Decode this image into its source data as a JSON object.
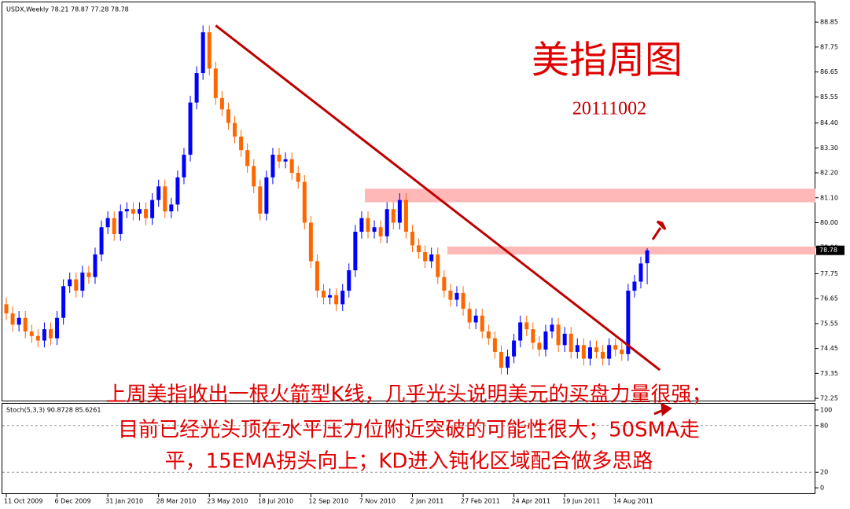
{
  "header": "USDX,Weekly  78.21 78.87 77.28 78.78",
  "chart_data": {
    "type": "candlestick",
    "title": "美指周图",
    "subtitle": "20111002",
    "annotation": [
      "上周美指收出一根火箭型K线，几乎光头说明美元的买盘力量很强；",
      "目前已经光头顶在水平压力位附近突破的可能性很大；50SMA走",
      "平，15EMA拐头向上；KD进入钝化区域配合做多思路"
    ],
    "categories": [
      "11 Oct 2009",
      null,
      null,
      null,
      null,
      null,
      null,
      null,
      "6 Dec 2009",
      null,
      null,
      null,
      null,
      null,
      null,
      null,
      "31 Jan 2010",
      null,
      null,
      null,
      null,
      null,
      null,
      null,
      "28 Mar 2010",
      null,
      null,
      null,
      null,
      null,
      null,
      null,
      "23 May 2010",
      null,
      null,
      null,
      null,
      null,
      null,
      null,
      "18 Jul 2010",
      null,
      null,
      null,
      null,
      null,
      null,
      null,
      "12 Sep 2010",
      null,
      null,
      null,
      null,
      null,
      null,
      null,
      "7 Nov 2010",
      null,
      null,
      null,
      null,
      null,
      null,
      null,
      "2 Jan 2011",
      null,
      null,
      null,
      null,
      null,
      null,
      null,
      "27 Feb 2011",
      null,
      null,
      null,
      null,
      null,
      null,
      null,
      "24 Apr 2011",
      null,
      null,
      null,
      null,
      null,
      null,
      null,
      "19 Jun 2011",
      null,
      null,
      null,
      null,
      null,
      null,
      null,
      "14 Aug 2011",
      null,
      null,
      null,
      null,
      null
    ],
    "open": [
      76.4,
      76.0,
      75.5,
      75.8,
      75.2,
      75.0,
      74.8,
      75.3,
      74.9,
      75.8,
      77.2,
      77.5,
      77.0,
      77.8,
      77.6,
      78.6,
      79.8,
      80.2,
      79.5,
      80.5,
      80.6,
      80.4,
      80.6,
      80.2,
      81.0,
      81.6,
      80.5,
      80.8,
      82.0,
      83.0,
      85.3,
      86.6,
      88.4,
      86.8,
      85.5,
      85.0,
      84.4,
      83.8,
      83.2,
      82.5,
      81.6,
      80.4,
      82.0,
      83.0,
      82.7,
      82.8,
      82.2,
      81.8,
      80.0,
      78.3,
      77.0,
      76.7,
      76.8,
      76.4,
      77.0,
      77.9,
      79.6,
      80.2,
      79.6,
      79.8,
      79.4,
      80.6,
      80.0,
      81.0,
      79.6,
      79.0,
      78.7,
      78.3,
      78.6,
      77.6,
      77.0,
      76.6,
      76.9,
      76.2,
      75.6,
      75.9,
      75.2,
      74.9,
      74.3,
      73.6,
      74.1,
      74.8,
      75.6,
      75.3,
      74.7,
      74.4,
      75.2,
      75.5,
      74.6,
      75.1,
      74.3,
      74.6,
      74.0,
      74.5,
      74.3,
      74.0,
      74.6,
      74.4,
      74.2,
      77.0,
      77.4,
      78.21
    ],
    "high": [
      76.7,
      76.3,
      76.1,
      76.1,
      75.5,
      75.3,
      75.6,
      75.6,
      76.1,
      77.5,
      77.8,
      77.8,
      78.1,
      78.1,
      78.9,
      80.1,
      80.5,
      80.5,
      80.8,
      80.9,
      80.9,
      80.9,
      80.9,
      81.3,
      81.9,
      81.9,
      81.1,
      82.3,
      83.3,
      85.6,
      86.9,
      88.7,
      88.7,
      87.1,
      85.8,
      85.3,
      84.7,
      84.1,
      83.5,
      82.8,
      81.9,
      82.3,
      83.3,
      83.3,
      83.1,
      83.1,
      82.5,
      82.1,
      80.3,
      78.6,
      77.3,
      77.1,
      77.1,
      77.3,
      78.2,
      79.9,
      80.5,
      80.5,
      80.1,
      80.1,
      80.9,
      80.9,
      81.3,
      81.3,
      79.9,
      79.3,
      79.0,
      78.9,
      78.9,
      77.9,
      77.3,
      77.2,
      77.2,
      76.5,
      76.2,
      76.2,
      75.5,
      75.2,
      74.6,
      74.4,
      75.1,
      75.9,
      75.9,
      75.6,
      75.0,
      75.5,
      75.8,
      75.8,
      75.4,
      75.4,
      74.9,
      74.9,
      74.8,
      74.8,
      74.6,
      74.9,
      74.9,
      74.7,
      77.3,
      77.7,
      78.5,
      78.87
    ],
    "low": [
      75.7,
      75.2,
      75.2,
      74.9,
      74.7,
      74.5,
      74.5,
      74.6,
      74.6,
      75.5,
      76.9,
      76.7,
      76.7,
      77.3,
      77.3,
      78.3,
      79.5,
      79.2,
      79.2,
      80.2,
      80.1,
      80.1,
      79.9,
      79.9,
      80.7,
      80.2,
      80.2,
      80.5,
      81.7,
      82.7,
      85.0,
      86.3,
      86.5,
      85.2,
      84.7,
      84.1,
      83.5,
      82.9,
      82.2,
      81.3,
      80.1,
      80.1,
      81.7,
      82.4,
      82.4,
      81.9,
      81.5,
      79.7,
      78.0,
      76.7,
      76.4,
      76.4,
      76.1,
      76.1,
      76.7,
      77.6,
      79.3,
      79.3,
      79.3,
      79.1,
      79.1,
      79.7,
      79.7,
      79.3,
      78.7,
      78.4,
      78.0,
      78.0,
      77.3,
      76.7,
      76.3,
      76.3,
      75.9,
      75.3,
      75.3,
      74.9,
      74.6,
      74.0,
      73.3,
      73.3,
      73.8,
      74.5,
      75.0,
      74.4,
      74.1,
      74.1,
      74.9,
      74.3,
      74.3,
      74.0,
      74.0,
      73.7,
      73.7,
      74.0,
      73.7,
      73.7,
      74.1,
      73.9,
      73.9,
      76.7,
      77.1,
      77.28
    ],
    "close": [
      76.0,
      75.5,
      75.8,
      75.2,
      75.0,
      74.8,
      75.3,
      74.9,
      75.8,
      77.2,
      77.5,
      77.0,
      77.8,
      77.6,
      78.6,
      79.8,
      80.2,
      79.5,
      80.5,
      80.6,
      80.4,
      80.6,
      80.2,
      81.0,
      81.6,
      80.5,
      80.8,
      82.0,
      83.0,
      85.3,
      86.6,
      88.4,
      86.8,
      85.5,
      85.0,
      84.4,
      83.8,
      83.2,
      82.5,
      81.6,
      80.4,
      82.0,
      83.0,
      82.7,
      82.8,
      82.2,
      81.8,
      80.0,
      78.3,
      77.0,
      76.7,
      76.8,
      76.4,
      77.0,
      77.9,
      79.6,
      80.2,
      79.6,
      79.8,
      79.4,
      80.6,
      80.0,
      81.0,
      79.6,
      79.0,
      78.7,
      78.3,
      78.6,
      77.6,
      77.0,
      76.6,
      76.9,
      76.2,
      75.6,
      75.9,
      75.2,
      74.9,
      74.3,
      73.6,
      74.1,
      74.8,
      75.6,
      75.3,
      74.7,
      74.4,
      75.2,
      75.5,
      74.6,
      75.1,
      74.3,
      74.6,
      74.0,
      74.5,
      74.3,
      74.0,
      74.6,
      74.4,
      74.2,
      77.0,
      77.4,
      78.2,
      78.78
    ],
    "up_color": "#0000ff",
    "down_color": "#ff6600",
    "ylim": [
      72.15,
      89.34
    ],
    "yticks": [
      88.85,
      87.75,
      86.65,
      85.55,
      {
        "value": 84.4,
        "label": "84.40"
      },
      {
        "value": 83.3,
        "label": "83.30"
      },
      {
        "value": 82.2,
        "label": "82.20"
      },
      {
        "value": 81.1,
        "label": "81.10"
      },
      {
        "value": 80,
        "label": "80.00"
      },
      {
        "value": 78.9,
        "label": "78.90"
      },
      77.75,
      76.65,
      75.55,
      74.45,
      73.35,
      72.25
    ],
    "zones": [
      {
        "low": 80.9,
        "high": 81.5,
        "start": 57,
        "color": "#ffb8b8"
      },
      {
        "low": 78.6,
        "high": 78.95,
        "start": 70,
        "color": "#ffb8b8"
      }
    ],
    "trendline": {
      "x": [
        33,
        103
      ],
      "y": [
        88.7,
        73.5
      ],
      "color": "#c00000"
    },
    "stoch": {
      "title": "Stoch(5,3,3) 90.8728 85.6261",
      "ylim": [
        -7,
        108
      ],
      "yticks": [
        100,
        80,
        20,
        0
      ],
      "levels": [
        80,
        20
      ]
    }
  }
}
